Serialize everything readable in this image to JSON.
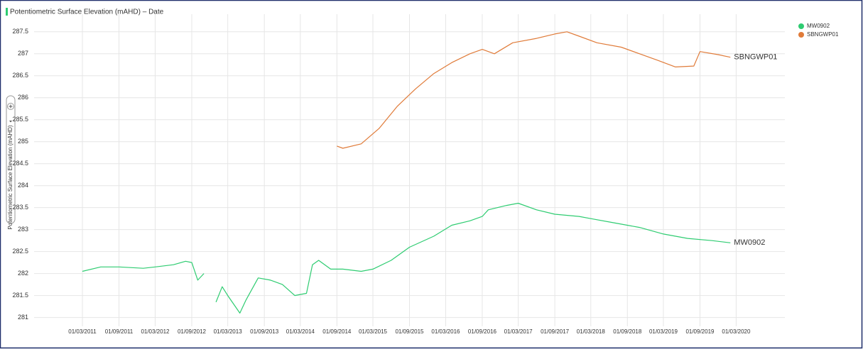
{
  "chart_data": {
    "type": "line",
    "title": "Potentiometric Surface Elevation (mAHD) – Date",
    "y_label": "Potentiometric Surface Elevation (mAHD)",
    "xlim": [
      "2010-07-01",
      "2020-11-01"
    ],
    "ylim": [
      280.8,
      287.9
    ],
    "xticks": [
      {
        "value": "2011-03-01",
        "label": "01/03/2011"
      },
      {
        "value": "2011-09-01",
        "label": "01/09/2011"
      },
      {
        "value": "2012-03-01",
        "label": "01/03/2012"
      },
      {
        "value": "2012-09-01",
        "label": "01/09/2012"
      },
      {
        "value": "2013-03-01",
        "label": "01/03/2013"
      },
      {
        "value": "2013-09-01",
        "label": "01/09/2013"
      },
      {
        "value": "2014-03-01",
        "label": "01/03/2014"
      },
      {
        "value": "2014-09-01",
        "label": "01/09/2014"
      },
      {
        "value": "2015-03-01",
        "label": "01/03/2015"
      },
      {
        "value": "2015-09-01",
        "label": "01/09/2015"
      },
      {
        "value": "2016-03-01",
        "label": "01/03/2016"
      },
      {
        "value": "2016-09-01",
        "label": "01/09/2016"
      },
      {
        "value": "2017-03-01",
        "label": "01/03/2017"
      },
      {
        "value": "2017-09-01",
        "label": "01/09/2017"
      },
      {
        "value": "2018-03-01",
        "label": "01/03/2018"
      },
      {
        "value": "2018-09-01",
        "label": "01/09/2018"
      },
      {
        "value": "2019-03-01",
        "label": "01/03/2019"
      },
      {
        "value": "2019-09-01",
        "label": "01/09/2019"
      },
      {
        "value": "2020-03-01",
        "label": "01/03/2020"
      }
    ],
    "yticks": [
      281,
      281.5,
      282,
      282.5,
      283,
      283.5,
      284,
      284.5,
      285,
      285.5,
      286,
      286.5,
      287,
      287.5
    ],
    "grid": true,
    "legend": "top-right",
    "series": [
      {
        "name": "MW0902",
        "color": "#2ecc71",
        "x": [
          "2011-03",
          "2011-06",
          "2011-09",
          "2012-01",
          "2012-03",
          "2012-06",
          "2012-08",
          "2012-09",
          "2012-10",
          "2012-11",
          "2012-12",
          "2013-01",
          "2013-02",
          "2013-03",
          "2013-05",
          "2013-06",
          "2013-08",
          "2013-10",
          "2013-12",
          "2014-02",
          "2014-04",
          "2014-05",
          "2014-06",
          "2014-08",
          "2014-10",
          "2015-01",
          "2015-03",
          "2015-06",
          "2015-09",
          "2016-01",
          "2016-04",
          "2016-07",
          "2016-09",
          "2016-10",
          "2017-01",
          "2017-03",
          "2017-06",
          "2017-09",
          "2018-01",
          "2018-03",
          "2018-07",
          "2018-11",
          "2019-03",
          "2019-07",
          "2019-11",
          "2020-02"
        ],
        "values": [
          282.05,
          282.15,
          282.15,
          282.12,
          282.15,
          282.2,
          282.28,
          282.25,
          281.85,
          282.0,
          null,
          281.35,
          281.7,
          281.5,
          281.1,
          281.4,
          281.9,
          281.85,
          281.75,
          281.5,
          281.55,
          282.2,
          282.3,
          282.1,
          282.1,
          282.05,
          282.1,
          282.3,
          282.6,
          282.85,
          283.1,
          283.2,
          283.3,
          283.45,
          283.55,
          283.6,
          283.45,
          283.35,
          283.3,
          283.25,
          283.15,
          283.05,
          282.9,
          282.8,
          282.75,
          282.7
        ]
      },
      {
        "name": "SBNGWP01",
        "color": "#e07b39",
        "x": [
          "2014-09",
          "2014-10",
          "2015-01",
          "2015-04",
          "2015-07",
          "2015-10",
          "2016-01",
          "2016-04",
          "2016-07",
          "2016-09",
          "2016-11",
          "2017-02",
          "2017-06",
          "2017-09",
          "2017-11",
          "2018-01",
          "2018-04",
          "2018-08",
          "2018-11",
          "2019-02",
          "2019-05",
          "2019-08",
          "2019-09",
          "2019-12",
          "2020-02"
        ],
        "values": [
          284.9,
          284.85,
          284.95,
          285.3,
          285.8,
          286.2,
          286.55,
          286.8,
          287.0,
          287.1,
          287.0,
          287.25,
          287.35,
          287.45,
          287.5,
          287.4,
          287.25,
          287.15,
          287.0,
          286.85,
          286.7,
          286.72,
          287.05,
          286.98,
          286.92
        ]
      }
    ]
  }
}
